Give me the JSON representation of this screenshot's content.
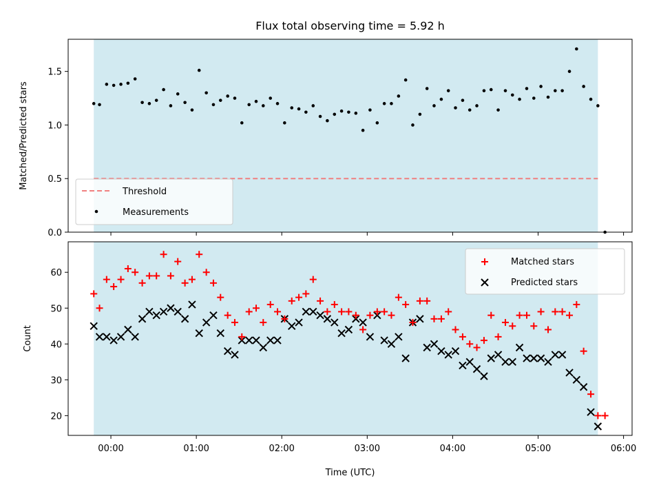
{
  "chart_data": [
    {
      "type": "scatter",
      "title": "Flux total observing time = 5.92 h",
      "ylabel": "Matched/Predicted stars",
      "xlabel": "",
      "x_unit": "hours after 00:00 UTC",
      "xlim": [
        -0.5,
        6.1
      ],
      "ylim": [
        0.0,
        1.8
      ],
      "yticks": [
        0.0,
        0.5,
        1.0,
        1.5
      ],
      "ytick_labels": [
        "0.0",
        "0.5",
        "1.0",
        "1.5"
      ],
      "shaded_span": [
        -0.2,
        5.7
      ],
      "shaded_color": "#add8e6",
      "threshold": {
        "name": "Threshold",
        "value": 0.5,
        "x_range": [
          -0.2,
          5.7
        ],
        "color": "#f08080"
      },
      "legend": {
        "placement": "lower-left",
        "entries": [
          "Threshold",
          "Measurements"
        ]
      },
      "series": [
        {
          "name": "Measurements",
          "color": "#000000",
          "marker": "dot",
          "x": [
            -0.2,
            -0.133,
            -0.05,
            0.033,
            0.117,
            0.2,
            0.283,
            0.367,
            0.45,
            0.533,
            0.617,
            0.7,
            0.783,
            0.867,
            0.95,
            1.033,
            1.117,
            1.2,
            1.283,
            1.367,
            1.45,
            1.533,
            1.617,
            1.7,
            1.783,
            1.867,
            1.95,
            2.033,
            2.117,
            2.2,
            2.283,
            2.367,
            2.45,
            2.533,
            2.617,
            2.7,
            2.783,
            2.867,
            2.95,
            3.033,
            3.117,
            3.2,
            3.283,
            3.367,
            3.45,
            3.533,
            3.617,
            3.7,
            3.783,
            3.867,
            3.95,
            4.033,
            4.117,
            4.2,
            4.283,
            4.367,
            4.45,
            4.533,
            4.617,
            4.7,
            4.783,
            4.867,
            4.95,
            5.033,
            5.117,
            5.2,
            5.283,
            5.367,
            5.45,
            5.533,
            5.617,
            5.7,
            5.783
          ],
          "y": [
            1.2,
            1.19,
            1.38,
            1.37,
            1.38,
            1.39,
            1.43,
            1.21,
            1.2,
            1.23,
            1.33,
            1.18,
            1.29,
            1.21,
            1.14,
            1.51,
            1.3,
            1.19,
            1.23,
            1.27,
            1.25,
            1.02,
            1.19,
            1.22,
            1.18,
            1.25,
            1.2,
            1.02,
            1.16,
            1.15,
            1.12,
            1.18,
            1.08,
            1.04,
            1.1,
            1.13,
            1.12,
            1.11,
            0.95,
            1.14,
            1.02,
            1.2,
            1.2,
            1.27,
            1.42,
            1.0,
            1.1,
            1.34,
            1.18,
            1.24,
            1.32,
            1.16,
            1.23,
            1.14,
            1.18,
            1.32,
            1.33,
            1.14,
            1.32,
            1.28,
            1.24,
            1.34,
            1.25,
            1.36,
            1.26,
            1.32,
            1.32,
            1.5,
            1.71,
            1.36,
            1.24,
            1.18,
            0.0
          ]
        }
      ]
    },
    {
      "type": "scatter",
      "title": "",
      "ylabel": "Count",
      "xlabel": "Time (UTC)",
      "x_unit": "hours after 00:00 UTC",
      "xlim": [
        -0.5,
        6.1
      ],
      "ylim": [
        14.5,
        68.5
      ],
      "yticks": [
        20,
        30,
        40,
        50,
        60
      ],
      "ytick_labels": [
        "20",
        "30",
        "40",
        "50",
        "60"
      ],
      "xticks": [
        0,
        1,
        2,
        3,
        4,
        5,
        6
      ],
      "xtick_labels": [
        "00:00",
        "01:00",
        "02:00",
        "03:00",
        "04:00",
        "05:00",
        "06:00"
      ],
      "shaded_span": [
        -0.2,
        5.7
      ],
      "shaded_color": "#add8e6",
      "legend": {
        "placement": "top-right",
        "entries": [
          "Matched stars",
          "Predicted stars"
        ]
      },
      "series": [
        {
          "name": "Matched stars",
          "color": "#ff0000",
          "marker": "plus",
          "x": [
            -0.2,
            -0.133,
            -0.05,
            0.033,
            0.117,
            0.2,
            0.283,
            0.367,
            0.45,
            0.533,
            0.617,
            0.7,
            0.783,
            0.867,
            0.95,
            1.033,
            1.117,
            1.2,
            1.283,
            1.367,
            1.45,
            1.533,
            1.617,
            1.7,
            1.783,
            1.867,
            1.95,
            2.033,
            2.117,
            2.2,
            2.283,
            2.367,
            2.45,
            2.533,
            2.617,
            2.7,
            2.783,
            2.867,
            2.95,
            3.033,
            3.117,
            3.2,
            3.283,
            3.367,
            3.45,
            3.533,
            3.617,
            3.7,
            3.783,
            3.867,
            3.95,
            4.033,
            4.117,
            4.2,
            4.283,
            4.367,
            4.45,
            4.533,
            4.617,
            4.7,
            4.783,
            4.867,
            4.95,
            5.033,
            5.117,
            5.2,
            5.283,
            5.367,
            5.45,
            5.533,
            5.617,
            5.7,
            5.783
          ],
          "y": [
            54,
            50,
            58,
            56,
            58,
            61,
            60,
            57,
            59,
            59,
            65,
            59,
            63,
            57,
            58,
            65,
            60,
            57,
            53,
            48,
            46,
            42,
            49,
            50,
            46,
            51,
            49,
            47,
            52,
            53,
            54,
            58,
            52,
            49,
            51,
            49,
            49,
            48,
            44,
            48,
            49,
            49,
            48,
            53,
            51,
            46,
            52,
            52,
            47,
            47,
            49,
            44,
            42,
            40,
            39,
            41,
            48,
            42,
            46,
            45,
            48,
            48,
            45,
            49,
            44,
            49,
            49,
            48,
            51,
            38,
            26,
            20,
            20
          ]
        },
        {
          "name": "Predicted stars",
          "color": "#000000",
          "marker": "x",
          "x": [
            -0.2,
            -0.133,
            -0.05,
            0.033,
            0.117,
            0.2,
            0.283,
            0.367,
            0.45,
            0.533,
            0.617,
            0.7,
            0.783,
            0.867,
            0.95,
            1.033,
            1.117,
            1.2,
            1.283,
            1.367,
            1.45,
            1.533,
            1.617,
            1.7,
            1.783,
            1.867,
            1.95,
            2.033,
            2.117,
            2.2,
            2.283,
            2.367,
            2.45,
            2.533,
            2.617,
            2.7,
            2.783,
            2.867,
            2.95,
            3.033,
            3.117,
            3.2,
            3.283,
            3.367,
            3.45,
            3.533,
            3.617,
            3.7,
            3.783,
            3.867,
            3.95,
            4.033,
            4.117,
            4.2,
            4.283,
            4.367,
            4.45,
            4.533,
            4.617,
            4.7,
            4.783,
            4.867,
            4.95,
            5.033,
            5.117,
            5.2,
            5.283,
            5.367,
            5.45,
            5.533,
            5.617,
            5.7
          ],
          "y": [
            45,
            42,
            42,
            41,
            42,
            44,
            42,
            47,
            49,
            48,
            49,
            50,
            49,
            47,
            51,
            43,
            46,
            48,
            43,
            38,
            37,
            41,
            41,
            41,
            39,
            41,
            41,
            47,
            45,
            46,
            49,
            49,
            48,
            47,
            46,
            43,
            44,
            47,
            46,
            42,
            48,
            41,
            40,
            42,
            36,
            46,
            47,
            39,
            40,
            38,
            37,
            38,
            34,
            35,
            33,
            31,
            36,
            37,
            35,
            35,
            39,
            36,
            36,
            36,
            35,
            37,
            37,
            32,
            30,
            28,
            21,
            17
          ]
        }
      ]
    }
  ]
}
